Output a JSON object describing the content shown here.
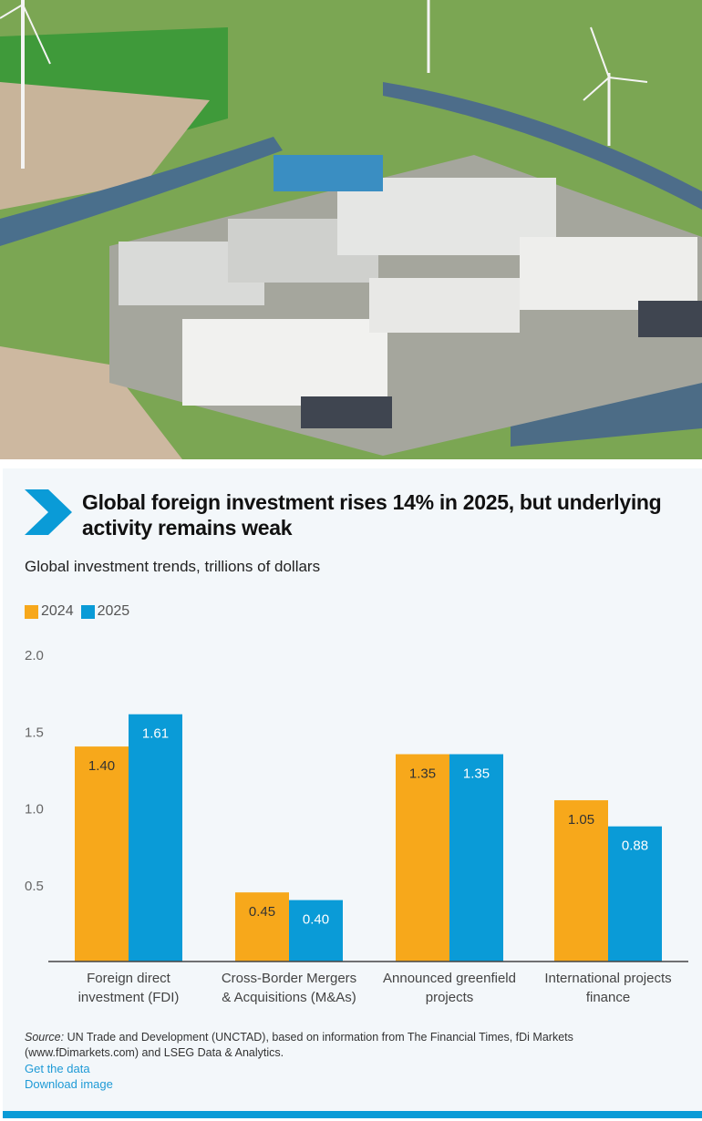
{
  "photo": {
    "description": "Aerial view of data center campus with wind turbines"
  },
  "header": {
    "icon": "chevron-right-icon",
    "title": "Global foreign investment rises 14% in 2025, but underlying activity remains weak",
    "subtitle": "Global investment trends, trillions of dollars"
  },
  "colors": {
    "series_2024": "#f7a81b",
    "series_2025": "#0a9bd7",
    "panel_bg": "#f3f7fa",
    "accent": "#0a9bd7",
    "link": "#1e9ad6"
  },
  "chart_data": {
    "type": "bar",
    "title": "Global foreign investment rises 14% in 2025, but underlying activity remains weak",
    "subtitle": "Global investment trends, trillions of dollars",
    "xlabel": "",
    "ylabel": "Trillions of dollars",
    "ylim": [
      0,
      2.0
    ],
    "yticks": [
      "0.5",
      "1.0",
      "1.5",
      "2.0"
    ],
    "ytick_values": [
      0.5,
      1.0,
      1.5,
      2.0
    ],
    "grid": false,
    "legend_position": "top-left",
    "categories": [
      [
        "Foreign direct",
        "investment (FDI)"
      ],
      [
        "Cross-Border Mergers",
        "& Acquisitions (M&As)"
      ],
      [
        "Announced greenfield",
        "projects"
      ],
      [
        "International projects",
        "finance"
      ]
    ],
    "series": [
      {
        "name": "2024",
        "values": [
          1.4,
          0.45,
          1.35,
          1.05
        ],
        "labels": [
          "1.40",
          "0.45",
          "1.35",
          "1.05"
        ]
      },
      {
        "name": "2025",
        "values": [
          1.61,
          0.4,
          1.35,
          0.88
        ],
        "labels": [
          "1.61",
          "0.40",
          "1.35",
          "0.88"
        ]
      }
    ]
  },
  "footer": {
    "source_label": "Source:",
    "source_text": " UN Trade and Development (UNCTAD), based on information from The Financial Times, fDi Markets (www.fDimarkets.com) and LSEG Data & Analytics.",
    "get_data_link": "Get the data",
    "download_link": "Download image"
  }
}
